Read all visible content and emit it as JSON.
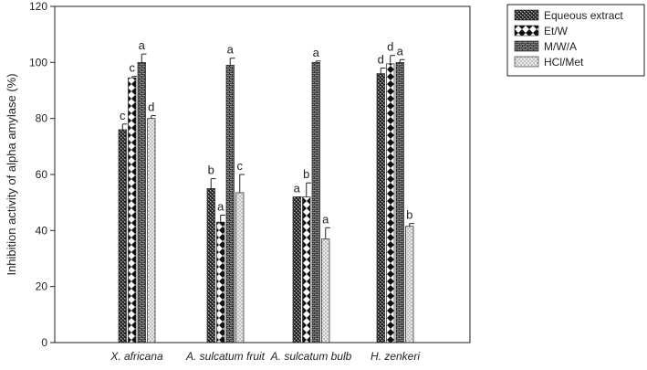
{
  "chart_data": {
    "type": "bar",
    "ylabel": "Inhibition activity of alpha amylase (%)",
    "xlabel": "",
    "ylim": [
      0,
      120
    ],
    "yticks": [
      0,
      20,
      40,
      60,
      80,
      100,
      120
    ],
    "categories": [
      "X. africana",
      "A. sulcatum fruit",
      "A. sulcatum bulb",
      "H. zenkeri"
    ],
    "legend_position": "top-right",
    "grid": false,
    "series": [
      {
        "name": "Equeous extract",
        "pattern": "crosshatch-dark",
        "values": [
          76,
          55,
          52,
          96
        ],
        "errors": [
          2,
          3.5,
          0,
          2
        ],
        "labels": [
          "c",
          "b",
          "a",
          "d"
        ]
      },
      {
        "name": "Et/W",
        "pattern": "diamonds",
        "values": [
          94.5,
          43,
          52,
          99.5
        ],
        "errors": [
          0.5,
          2.5,
          5,
          3
        ],
        "labels": [
          "c",
          "a",
          "b",
          "d"
        ]
      },
      {
        "name": "M/W/A",
        "pattern": "bricks",
        "values": [
          100,
          99,
          100,
          100
        ],
        "errors": [
          3,
          2.5,
          0.5,
          1
        ],
        "labels": [
          "a",
          "a",
          "a",
          "a"
        ]
      },
      {
        "name": "HCl/Met",
        "pattern": "dots",
        "values": [
          80,
          53.5,
          37,
          41.5
        ],
        "errors": [
          1,
          6.5,
          4,
          1
        ],
        "labels": [
          "d",
          "c",
          "a",
          "b"
        ]
      }
    ]
  }
}
